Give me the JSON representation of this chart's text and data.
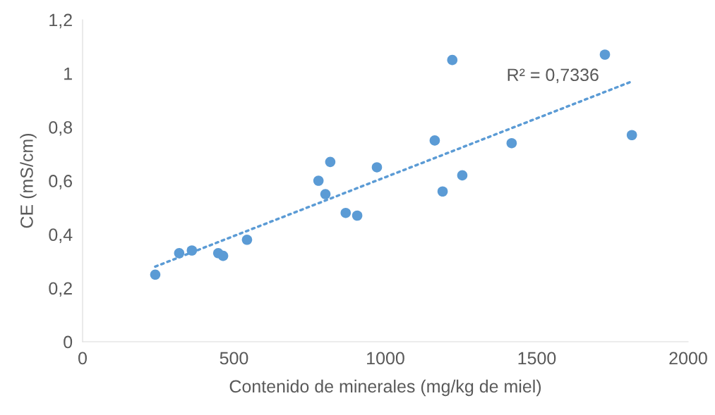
{
  "chart_data": {
    "type": "scatter",
    "xlabel": "Contenido de minerales (mg/kg de miel)",
    "ylabel": "CE (mS/cm)",
    "xlim": [
      0,
      2000
    ],
    "xticks": [
      0,
      500,
      1000,
      1500,
      2000
    ],
    "ylim": [
      0,
      1.2
    ],
    "yticks": [
      0,
      {
        "value": 0.2,
        "label": "0,2"
      },
      {
        "value": 0.4,
        "label": "0,4"
      },
      {
        "value": 0.6,
        "label": "0,6"
      },
      {
        "value": 0.8,
        "label": "0,8"
      },
      1,
      {
        "value": 1.2,
        "label": "1,2"
      }
    ],
    "grid": false,
    "marker": "circle",
    "series": [
      {
        "color": "#5b9bd5",
        "x": [
          240,
          319,
          361,
          448,
          464,
          543,
          779,
          802,
          818,
          869,
          907,
          972,
          1163,
          1189,
          1221,
          1254,
          1417,
          1725,
          1814
        ],
        "values": [
          0.25,
          0.33,
          0.34,
          0.33,
          0.32,
          0.38,
          0.6,
          0.55,
          0.67,
          0.48,
          0.47,
          0.65,
          0.75,
          0.56,
          1.05,
          0.62,
          0.74,
          1.07,
          0.77
        ]
      },
      {
        "type": "line",
        "color": "#5b9bd5",
        "line_style": "dotted",
        "marker": "none",
        "x": [
          240,
          1814
        ],
        "values": [
          0.28,
          0.97
        ]
      }
    ],
    "annotations": [
      "R² = 0,7336"
    ]
  }
}
